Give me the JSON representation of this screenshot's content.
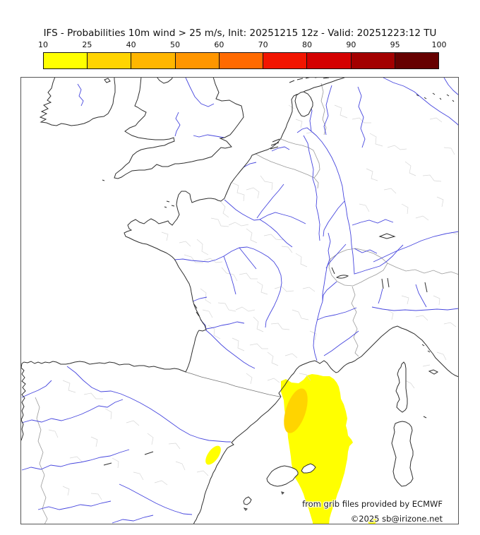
{
  "title": "IFS - Probabilities 10m wind > 25 m/s, Init: 20251215 12z - Valid: 20251223:12 TU",
  "colorbar": {
    "ticks": [
      "10",
      "25",
      "40",
      "50",
      "60",
      "70",
      "80",
      "90",
      "95",
      "100"
    ],
    "colors": [
      "#ffff00",
      "#ffd400",
      "#ffb600",
      "#ff9600",
      "#ff6a00",
      "#f21500",
      "#d40000",
      "#a30000",
      "#660000"
    ]
  },
  "attribution": {
    "line1": "from grib files provided by ECMWF",
    "line2": "©2025 sb@irizone.net"
  },
  "colors": {
    "coastline": "#2e2e2e",
    "rivers": "#4646de",
    "country_borders": "#9a9a9a",
    "region_borders": "#d6d6d6",
    "map_frame": "#555555",
    "island_fill": "#ffffff"
  },
  "overlays": {
    "prob_10_25_level": 0,
    "prob_25_40_level": 1
  }
}
